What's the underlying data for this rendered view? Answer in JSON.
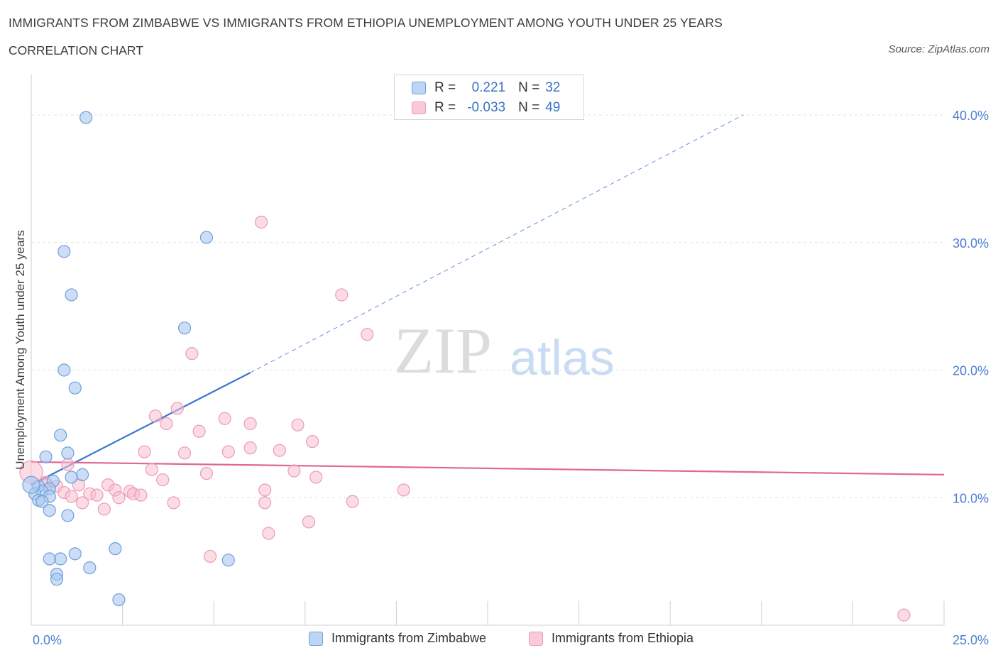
{
  "title": "IMMIGRANTS FROM ZIMBABWE VS IMMIGRANTS FROM ETHIOPIA UNEMPLOYMENT AMONG YOUTH UNDER 25 YEARS",
  "subtitle": "CORRELATION CHART",
  "source": "Source: ZipAtlas.com",
  "watermark": {
    "zip": "ZIP",
    "atlas": "atlas"
  },
  "colors": {
    "zimbabwe_fill": "#a9c8f0",
    "zimbabwe_stroke": "#6f9fdc",
    "zimbabwe_line": "#3a77d0",
    "ethiopia_fill": "#f7bfd0",
    "ethiopia_stroke": "#ee9ab5",
    "ethiopia_line": "#e0678f",
    "tick_text": "#4a7fd0"
  },
  "legend": {
    "r_label": "R =",
    "n_label": "N =",
    "zimbabwe": {
      "r": "0.221",
      "n": "32"
    },
    "ethiopia": {
      "r": "-0.033",
      "n": "49"
    }
  },
  "chart_data": {
    "type": "scatter",
    "xlabel": "",
    "ylabel": "Unemployment Among Youth under 25 years",
    "xlim": [
      0,
      25
    ],
    "ylim": [
      0,
      40
    ],
    "x_tick_labels": [
      "0.0%",
      "25.0%"
    ],
    "y_tick_labels": [
      "10.0%",
      "20.0%",
      "30.0%",
      "40.0%"
    ],
    "y_ticks": [
      10,
      20,
      30,
      40
    ],
    "grid": true,
    "legend_position": "bottom-center",
    "series": [
      {
        "name": "Immigrants from Zimbabwe",
        "points": [
          [
            1.5,
            39.8
          ],
          [
            4.8,
            30.4
          ],
          [
            0.9,
            29.3
          ],
          [
            1.1,
            25.9
          ],
          [
            4.2,
            23.3
          ],
          [
            0.9,
            20.0
          ],
          [
            1.2,
            18.6
          ],
          [
            0.8,
            14.9
          ],
          [
            1.0,
            13.5
          ],
          [
            0.4,
            13.2
          ],
          [
            1.4,
            11.8
          ],
          [
            1.1,
            11.6
          ],
          [
            0.6,
            11.3
          ],
          [
            0.2,
            10.9
          ],
          [
            0.5,
            10.7
          ],
          [
            0.3,
            10.5
          ],
          [
            0.1,
            10.3
          ],
          [
            0.5,
            10.1
          ],
          [
            0.2,
            9.8
          ],
          [
            0.3,
            9.7
          ],
          [
            0.5,
            9.0
          ],
          [
            1.0,
            8.6
          ],
          [
            2.3,
            6.0
          ],
          [
            1.2,
            5.6
          ],
          [
            0.8,
            5.2
          ],
          [
            0.5,
            5.2
          ],
          [
            5.4,
            5.1
          ],
          [
            1.6,
            4.5
          ],
          [
            0.7,
            4.0
          ],
          [
            0.7,
            3.6
          ],
          [
            2.4,
            2.0
          ],
          [
            0.0,
            11.0
          ]
        ]
      },
      {
        "name": "Immigrants from Ethiopia",
        "points": [
          [
            0.0,
            12.0
          ],
          [
            6.3,
            31.6
          ],
          [
            8.5,
            25.9
          ],
          [
            9.2,
            22.8
          ],
          [
            4.4,
            21.3
          ],
          [
            4.0,
            17.0
          ],
          [
            3.4,
            16.4
          ],
          [
            5.3,
            16.2
          ],
          [
            3.7,
            15.8
          ],
          [
            6.0,
            15.8
          ],
          [
            7.3,
            15.7
          ],
          [
            4.6,
            15.2
          ],
          [
            7.7,
            14.4
          ],
          [
            6.0,
            13.9
          ],
          [
            3.1,
            13.6
          ],
          [
            5.4,
            13.6
          ],
          [
            6.8,
            13.7
          ],
          [
            4.2,
            13.5
          ],
          [
            1.0,
            12.6
          ],
          [
            3.3,
            12.2
          ],
          [
            7.2,
            12.1
          ],
          [
            4.8,
            11.9
          ],
          [
            7.8,
            11.6
          ],
          [
            3.6,
            11.4
          ],
          [
            0.4,
            11.2
          ],
          [
            1.3,
            11.0
          ],
          [
            2.1,
            11.0
          ],
          [
            0.7,
            10.9
          ],
          [
            2.3,
            10.6
          ],
          [
            6.4,
            10.6
          ],
          [
            10.2,
            10.6
          ],
          [
            2.7,
            10.5
          ],
          [
            0.9,
            10.4
          ],
          [
            1.6,
            10.3
          ],
          [
            2.8,
            10.3
          ],
          [
            3.0,
            10.2
          ],
          [
            1.8,
            10.2
          ],
          [
            1.1,
            10.1
          ],
          [
            2.4,
            10.0
          ],
          [
            1.4,
            9.6
          ],
          [
            3.9,
            9.6
          ],
          [
            6.4,
            9.6
          ],
          [
            8.8,
            9.7
          ],
          [
            2.0,
            9.1
          ],
          [
            7.6,
            8.1
          ],
          [
            6.5,
            7.2
          ],
          [
            4.9,
            5.4
          ],
          [
            23.9,
            0.8
          ],
          [
            0.4,
            11.0
          ]
        ]
      }
    ],
    "trend_lines": [
      {
        "series": "Immigrants from Zimbabwe",
        "x0": 0.0,
        "y0": 11.0,
        "x1": 6.0,
        "y1": 19.8,
        "dashed_to_x": 19.5,
        "dashed_to_y": 40.0
      },
      {
        "series": "Immigrants from Ethiopia",
        "x0": 0.0,
        "y0": 12.8,
        "x1": 25.0,
        "y1": 11.8
      }
    ]
  }
}
